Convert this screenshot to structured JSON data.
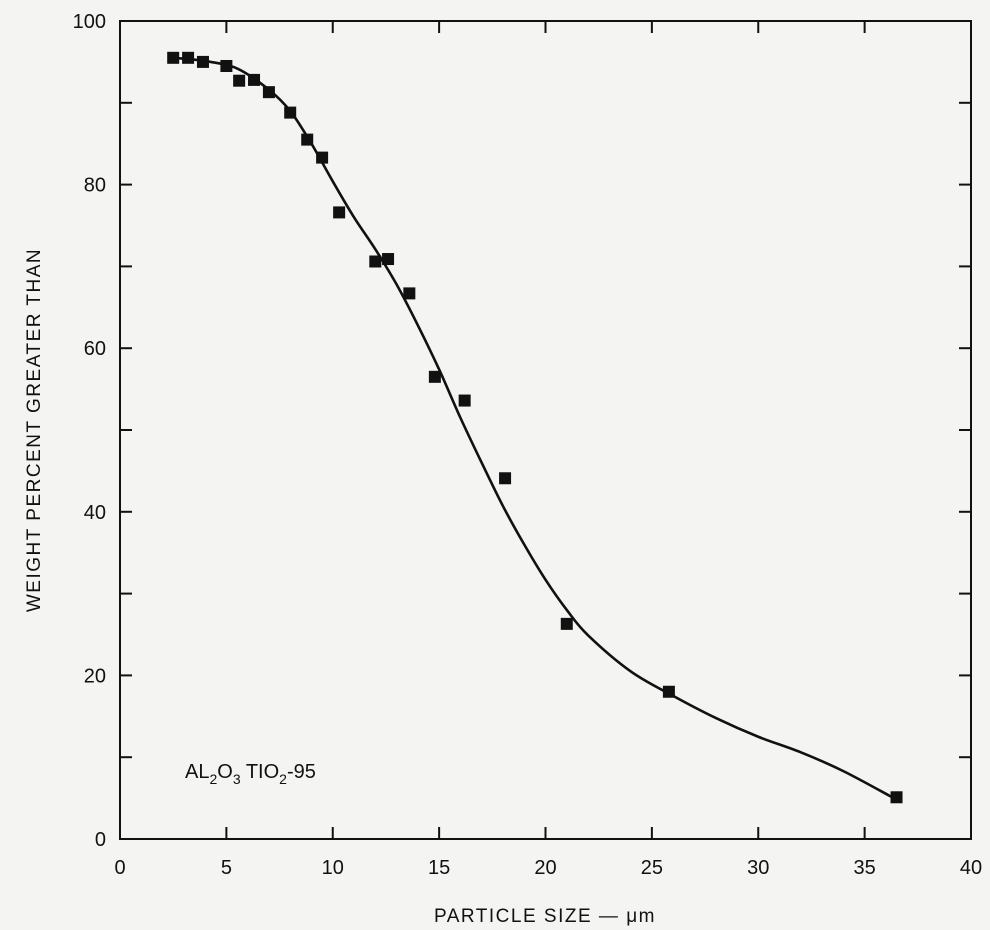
{
  "chart_data": {
    "type": "scatter",
    "xlabel": "PARTICLE SIZE — μm",
    "ylabel": "WEIGHT PERCENT GREATER THAN",
    "xlim": [
      0,
      40
    ],
    "ylim": [
      0,
      100
    ],
    "x_ticks": [
      0,
      5,
      10,
      15,
      20,
      25,
      30,
      35,
      40
    ],
    "y_ticks": [
      0,
      20,
      40,
      60,
      80,
      100
    ],
    "grid": false,
    "annotation": {
      "prefix": "AL",
      "sub1": "2",
      "mid": "O",
      "sub2": "3",
      "rest": " TIO",
      "sub3": "2",
      "suffix": "-95"
    },
    "series": [
      {
        "kind": "points",
        "marker": "square",
        "color": "#111111",
        "x": [
          2.5,
          3.2,
          3.9,
          5.0,
          5.6,
          6.3,
          7.0,
          8.0,
          8.8,
          9.5,
          10.3,
          12.0,
          12.6,
          13.6,
          14.8,
          16.2,
          18.1,
          21.0,
          25.8,
          36.5
        ],
        "y": [
          95.5,
          95.5,
          95.0,
          94.5,
          92.7,
          92.8,
          91.3,
          88.8,
          85.5,
          83.3,
          76.6,
          70.6,
          70.9,
          66.7,
          56.5,
          53.6,
          44.1,
          26.3,
          18.0,
          5.1
        ]
      },
      {
        "kind": "curve",
        "color": "#111111",
        "x": [
          2.5,
          4,
          5.5,
          7,
          8,
          9,
          10,
          11,
          12,
          13,
          14,
          15,
          16,
          17,
          18,
          19,
          20,
          21,
          22,
          24,
          26,
          28,
          30,
          32,
          34,
          36.3
        ],
        "y": [
          95.5,
          95.1,
          94.2,
          91.6,
          89.0,
          85.0,
          80.4,
          76.0,
          72.1,
          67.8,
          62.8,
          57.4,
          51.5,
          46.0,
          40.7,
          36.0,
          31.7,
          28.0,
          24.9,
          20.5,
          17.5,
          14.8,
          12.5,
          10.6,
          8.3,
          5.1
        ]
      }
    ]
  }
}
